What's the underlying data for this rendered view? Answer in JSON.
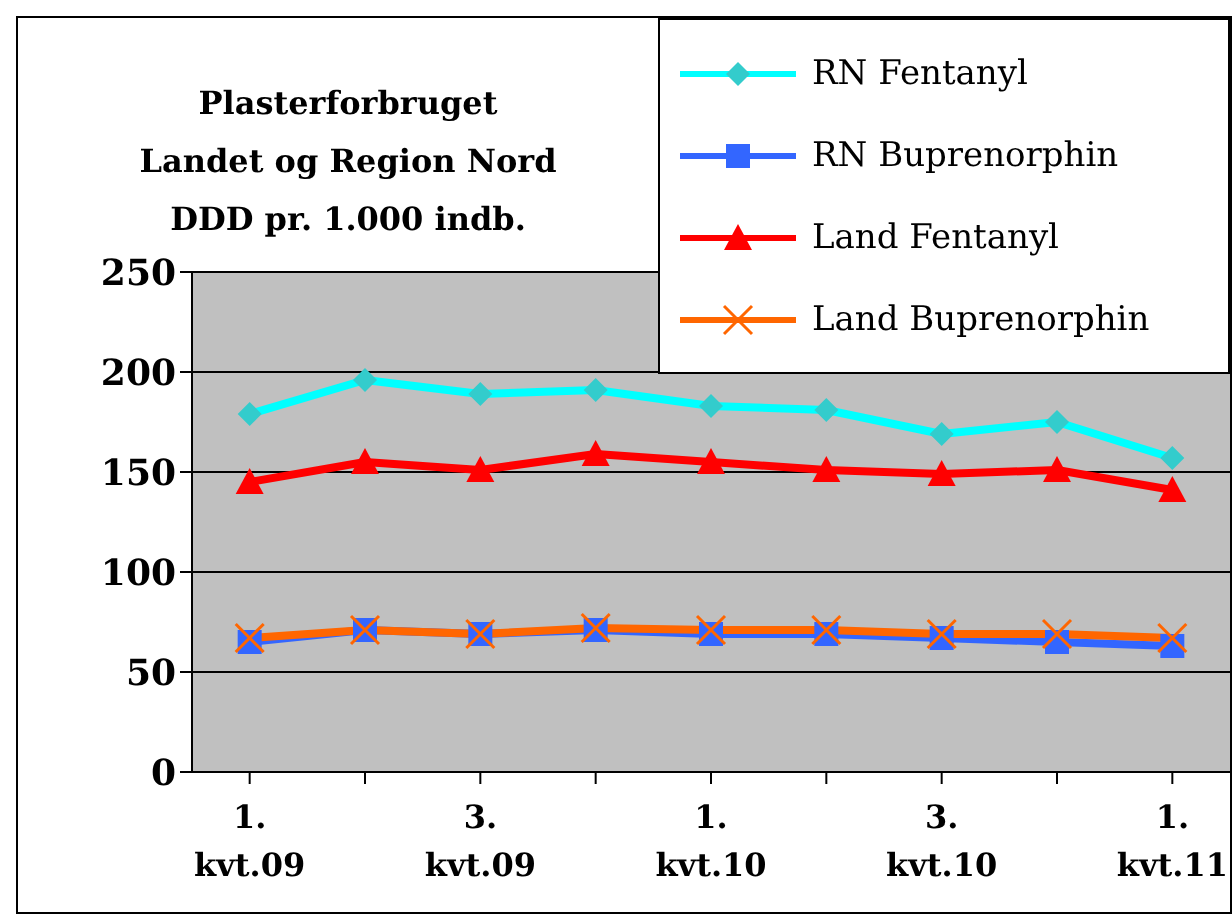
{
  "chart_data": {
    "type": "line",
    "title": "Plasterforbruget\nLandet og Region Nord\nDDD pr. 1.000 indb.",
    "categories": [
      "1. kvt.09",
      null,
      "3. kvt.09",
      null,
      "1. kvt.10",
      null,
      "3. kvt.10",
      null,
      "1. kvt.11"
    ],
    "series": [
      {
        "name": "RN Fentanyl",
        "color": "#00ffff",
        "marker": "diamond",
        "values": [
          179,
          196,
          189,
          191,
          183,
          181,
          169,
          175,
          157
        ]
      },
      {
        "name": "RN Buprenorphin",
        "color": "#3366ff",
        "marker": "square",
        "values": [
          65,
          71,
          69,
          71,
          69,
          69,
          67,
          65,
          63
        ]
      },
      {
        "name": "Land Fentanyl",
        "color": "#ff0000",
        "marker": "triangle",
        "values": [
          145,
          155,
          151,
          159,
          155,
          151,
          149,
          151,
          141
        ]
      },
      {
        "name": "Land Buprenorphin",
        "color": "#ff6600",
        "marker": "cross",
        "values": [
          67,
          71,
          69,
          72,
          71,
          71,
          69,
          69,
          67
        ]
      }
    ],
    "ylim": [
      0,
      250
    ],
    "yticks": [
      0,
      50,
      100,
      150,
      200,
      250
    ],
    "grid": "y",
    "legend": "top right"
  }
}
